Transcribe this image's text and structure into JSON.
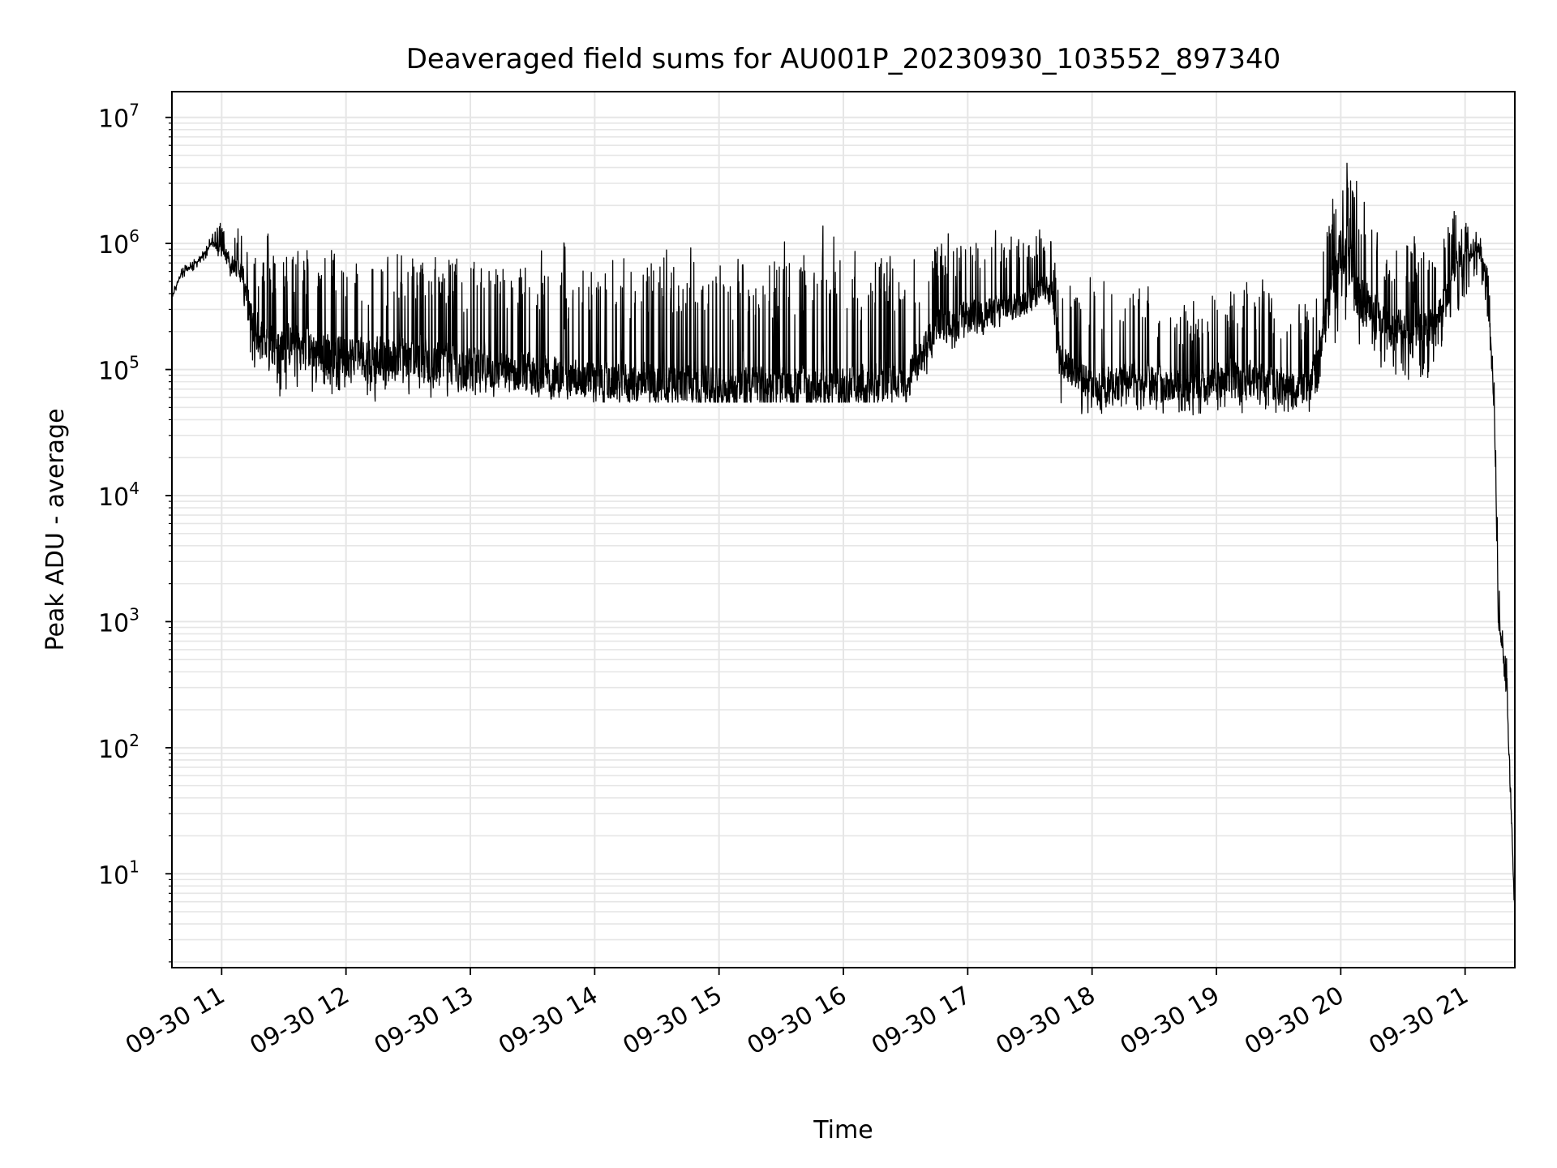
{
  "chart_data": {
    "type": "line",
    "title": "Deaveraged field sums for AU001P_20230930_103552_897340",
    "xlabel": "Time",
    "ylabel": "Peak ADU - average",
    "yscale": "log",
    "xlim": [
      "09-30 10:36",
      "09-30 21:24"
    ],
    "ylim": [
      1.8,
      16000000
    ],
    "grid": "both-major-and-minor",
    "line_color": "#000000",
    "xtick_labels": [
      "09-30 11",
      "09-30 12",
      "09-30 13",
      "09-30 14",
      "09-30 15",
      "09-30 16",
      "09-30 17",
      "09-30 18",
      "09-30 19",
      "09-30 20",
      "09-30 21"
    ],
    "ytick_labels": [
      {
        "base": "10",
        "exp": "1",
        "value": 10
      },
      {
        "base": "10",
        "exp": "2",
        "value": 100
      },
      {
        "base": "10",
        "exp": "3",
        "value": 1000
      },
      {
        "base": "10",
        "exp": "4",
        "value": 10000
      },
      {
        "base": "10",
        "exp": "5",
        "value": 100000
      },
      {
        "base": "10",
        "exp": "6",
        "value": 1000000
      },
      {
        "base": "10",
        "exp": "7",
        "value": 10000000
      }
    ],
    "series": [
      {
        "x": [
          "09-30 10:36",
          "09-30 10:40",
          "09-30 10:45",
          "09-30 10:50",
          "09-30 10:55",
          "09-30 11:00",
          "09-30 11:05",
          "09-30 11:10",
          "09-30 11:15",
          "09-30 11:20",
          "09-30 11:30",
          "09-30 11:45",
          "09-30 12:00",
          "09-30 12:15",
          "09-30 12:30",
          "09-30 12:45",
          "09-30 13:00",
          "09-30 13:15",
          "09-30 13:30",
          "09-30 13:45",
          "09-30 14:00",
          "09-30 14:30",
          "09-30 15:00",
          "09-30 15:30",
          "09-30 16:00",
          "09-30 16:30",
          "09-30 16:45",
          "09-30 17:00",
          "09-30 17:15",
          "09-30 17:30",
          "09-30 17:40",
          "09-30 17:45",
          "09-30 18:00",
          "09-30 18:15",
          "09-30 18:30",
          "09-30 18:45",
          "09-30 18:50",
          "09-30 18:55",
          "09-30 19:00",
          "09-30 19:15",
          "09-30 19:30",
          "09-30 19:45",
          "09-30 20:00",
          "09-30 20:10",
          "09-30 20:15",
          "09-30 20:20",
          "09-30 20:25",
          "09-30 20:30",
          "09-30 20:35",
          "09-30 20:40",
          "09-30 20:45",
          "09-30 20:50",
          "09-30 20:55",
          "09-30 21:00",
          "09-30 21:05",
          "09-30 21:10",
          "09-30 21:12",
          "09-30 21:14",
          "09-30 21:16",
          "09-30 21:18",
          "09-30 21:20",
          "09-30 21:22",
          "09-30 21:24"
        ],
        "baseline": [
          380000,
          560000,
          650000,
          760000,
          1000000,
          900000,
          700000,
          600000,
          220000,
          160000,
          160000,
          140000,
          130000,
          125000,
          120000,
          110000,
          100000,
          95000,
          90000,
          85000,
          80000,
          75000,
          70000,
          70000,
          70000,
          75000,
          220000,
          260000,
          300000,
          360000,
          500000,
          120000,
          75000,
          80000,
          75000,
          70000,
          70000,
          70000,
          80000,
          85000,
          75000,
          70000,
          900000,
          400000,
          300000,
          250000,
          200000,
          220000,
          180000,
          200000,
          220000,
          350000,
          700000,
          800000,
          1000000,
          600000,
          200000,
          50000,
          1000,
          600,
          300,
          40,
          4
        ],
        "low": [
          350000,
          480000,
          550000,
          650000,
          850000,
          700000,
          500000,
          400000,
          50000,
          45000,
          50000,
          50000,
          50000,
          50000,
          52000,
          52000,
          52000,
          55000,
          55000,
          55000,
          55000,
          55000,
          55000,
          55000,
          55000,
          55000,
          90000,
          150000,
          200000,
          250000,
          300000,
          38000,
          40000,
          40000,
          40000,
          38000,
          38000,
          38000,
          40000,
          40000,
          40000,
          38000,
          120000,
          90000,
          80000,
          70000,
          50000,
          60000,
          50000,
          50000,
          80000,
          100000,
          200000,
          300000,
          400000,
          300000,
          90000,
          45000,
          700,
          400,
          200,
          30,
          3.8
        ],
        "high": [
          420000,
          650000,
          750000,
          850000,
          1200000,
          1900000,
          1800000,
          1700000,
          1600000,
          1500000,
          1600000,
          1500000,
          1500000,
          1400000,
          1450000,
          1400000,
          1500000,
          1200000,
          1500000,
          1300000,
          1400000,
          1600000,
          1600000,
          1600000,
          1600000,
          1500000,
          1600000,
          1500000,
          1600000,
          1900000,
          1500000,
          800000,
          700000,
          700000,
          600000,
          500000,
          450000,
          400000,
          800000,
          700000,
          500000,
          500000,
          7800000,
          5000000,
          2000000,
          1000000,
          1300000,
          2000000,
          1600000,
          1800000,
          1200000,
          2000000,
          2600000,
          1900000,
          1700000,
          1000000,
          500000,
          100000,
          3500,
          1300,
          600,
          100,
          6
        ]
      }
    ]
  }
}
